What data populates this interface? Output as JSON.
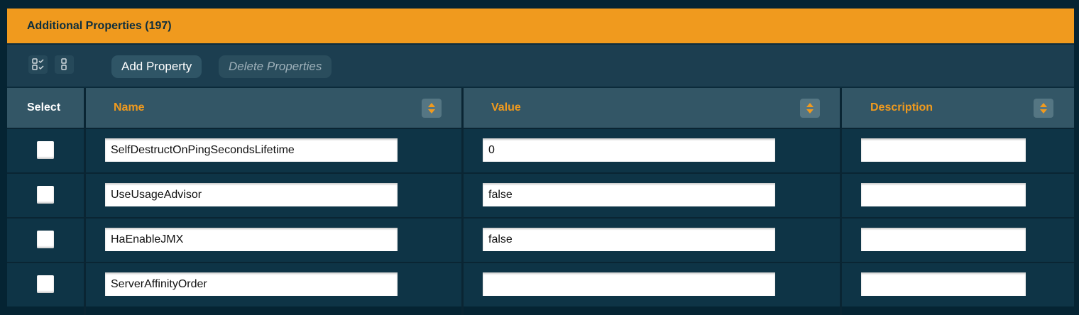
{
  "panel": {
    "title": "Additional Properties (197)"
  },
  "toolbar": {
    "select_all_icon": "select-all-icon",
    "deselect_all_icon": "deselect-all-icon",
    "add_label": "Add Property",
    "delete_label": "Delete Properties"
  },
  "table": {
    "headers": {
      "select": "Select",
      "name": "Name",
      "value": "Value",
      "description": "Description"
    },
    "rows": [
      {
        "name": "SelfDestructOnPingSecondsLifetime",
        "value": "0",
        "description": "",
        "checked": false
      },
      {
        "name": "UseUsageAdvisor",
        "value": "false",
        "description": "",
        "checked": false
      },
      {
        "name": "HaEnableJMX",
        "value": "false",
        "description": "",
        "checked": false
      },
      {
        "name": "ServerAffinityOrder",
        "value": "",
        "description": "",
        "checked": false
      }
    ]
  },
  "colors": {
    "accent": "#f09a1e",
    "header_bg": "#335666",
    "row_bg": "#0e3446"
  }
}
